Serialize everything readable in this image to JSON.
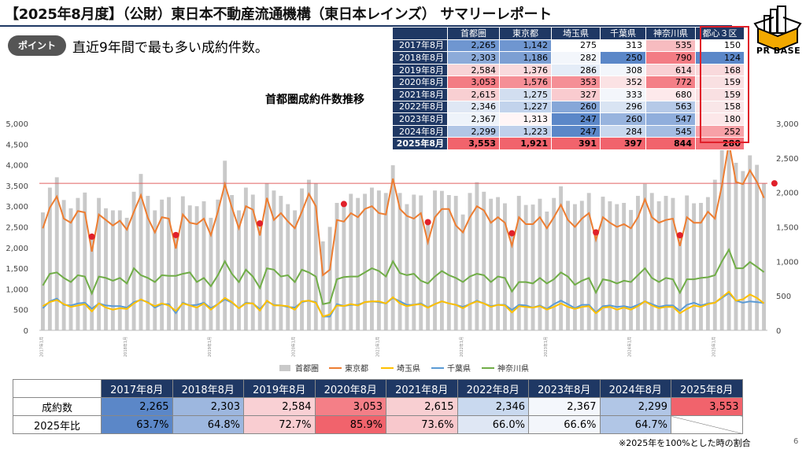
{
  "header": {
    "title": "【2025年8月度】（公財）東日本不動産流通機構（東日本レインズ） サマリーレポート",
    "logo_text": "PR BASE"
  },
  "point": {
    "badge": "ポイント",
    "text": "直近9年間で最も多い成約件数。"
  },
  "summary_table": {
    "columns": [
      "首都圏",
      "東京都",
      "埼玉県",
      "千葉県",
      "神奈川県",
      "都心３区"
    ],
    "rows": [
      {
        "label": "2017年8月",
        "values": [
          "2,265",
          "1,142",
          "275",
          "313",
          "535",
          "150"
        ]
      },
      {
        "label": "2018年8月",
        "values": [
          "2,303",
          "1,186",
          "282",
          "250",
          "790",
          "124"
        ]
      },
      {
        "label": "2019年8月",
        "values": [
          "2,584",
          "1,376",
          "286",
          "308",
          "614",
          "168"
        ]
      },
      {
        "label": "2020年8月",
        "values": [
          "3,053",
          "1,576",
          "353",
          "352",
          "772",
          "159"
        ]
      },
      {
        "label": "2021年8月",
        "values": [
          "2,615",
          "1,275",
          "327",
          "333",
          "680",
          "159"
        ]
      },
      {
        "label": "2022年8月",
        "values": [
          "2,346",
          "1,227",
          "260",
          "296",
          "563",
          "158"
        ]
      },
      {
        "label": "2023年8月",
        "values": [
          "2,367",
          "1,313",
          "247",
          "260",
          "547",
          "180"
        ]
      },
      {
        "label": "2024年8月",
        "values": [
          "2,299",
          "1,223",
          "247",
          "284",
          "545",
          "252"
        ]
      },
      {
        "label": "2025年8月",
        "values": [
          "3,553",
          "1,921",
          "391",
          "397",
          "844",
          "280"
        ]
      }
    ],
    "cell_colors": [
      [
        "#6f96d0",
        "#6f96d0",
        "#ffffff",
        "#ffffff",
        "#f7bcc0",
        "#ffffff"
      ],
      [
        "#8cabd9",
        "#7c9fd3",
        "#f3f6fb",
        "#5b87c8",
        "#f37c84",
        "#5b87c8"
      ],
      [
        "#f8d3d6",
        "#f9dadd",
        "#e4ecf7",
        "#f3f6fb",
        "#f9d0d4",
        "#f9d9dc"
      ],
      [
        "#f37c84",
        "#f58f96",
        "#f58f96",
        "#fbe2e4",
        "#f47f87",
        "#f9e0e2"
      ],
      [
        "#f8cfd2",
        "#d2def0",
        "#f9cbcf",
        "#f3f6fb",
        "#fde9eb",
        "#f9e0e2"
      ],
      [
        "#dfe7f4",
        "#c2d3ec",
        "#86a7d8",
        "#d9e4f3",
        "#b5c9e7",
        "#f9e6e8"
      ],
      [
        "#eef3fa",
        "#fff5f6",
        "#5b87c8",
        "#98b4de",
        "#90aedc",
        "#fce7e9"
      ],
      [
        "#b1c6e6",
        "#bfd0eb",
        "#5b87c8",
        "#c8d8ee",
        "#a4bde2",
        "#f7a1a7"
      ],
      [
        "#f1636c",
        "#f1636c",
        "#f1636c",
        "#f1636c",
        "#f1636c",
        "#f4727a"
      ]
    ]
  },
  "chart_data": {
    "type": "bar+line",
    "title": "首都圏成約件数推移",
    "y_left": {
      "min": 0,
      "max": 5000,
      "ticks": [
        "0",
        "500",
        "1,000",
        "1,500",
        "2,000",
        "2,500",
        "3,000",
        "3,500",
        "4,000",
        "4,500",
        "5,000"
      ]
    },
    "y_right": {
      "min": 0,
      "max": 3000,
      "ticks": [
        "0",
        "500",
        "1,000",
        "1,500",
        "2,000",
        "2,500",
        "3,000"
      ]
    },
    "reference_line_value": 3553,
    "legend": [
      "首都圏",
      "東京都",
      "埼玉県",
      "千葉県",
      "神奈川県"
    ],
    "x_start": "2017年1月",
    "months_count": 104,
    "year_markers": [
      "2017年1月",
      "2018年1月",
      "2019年1月",
      "2020年1月",
      "2021年1月",
      "2022年1月",
      "2023年1月",
      "2024年1月",
      "2025年1月"
    ],
    "august_index": [
      7,
      19,
      31,
      43,
      55,
      67,
      79,
      91,
      103
    ],
    "shutoken": [
      2850,
      3450,
      3700,
      3150,
      2950,
      3200,
      3330,
      2265,
      3200,
      2950,
      2900,
      2900,
      2720,
      3350,
      3780,
      3250,
      2900,
      3160,
      3220,
      2303,
      3240,
      3020,
      3000,
      3120,
      2720,
      3160,
      4100,
      3270,
      2900,
      3450,
      3280,
      2584,
      3550,
      3380,
      3250,
      3050,
      2900,
      3430,
      3640,
      3550,
      2150,
      2500,
      3080,
      3053,
      3300,
      3200,
      3300,
      3450,
      3380,
      3320,
      3990,
      3320,
      3050,
      3280,
      3260,
      2615,
      3380,
      3370,
      3270,
      3250,
      2800,
      3320,
      3580,
      3350,
      3180,
      3220,
      3070,
      2346,
      3250,
      3030,
      3040,
      3180,
      2870,
      3200,
      3480,
      3130,
      3050,
      3130,
      3320,
      2367,
      3230,
      3120,
      3050,
      3080,
      2910,
      3250,
      3540,
      3320,
      3120,
      3250,
      3200,
      2299,
      3260,
      3070,
      3080,
      3220,
      3640,
      4480,
      4850,
      4050,
      3850,
      4230,
      4000,
      3553
    ],
    "tokyo": [
      1480,
      1780,
      1940,
      1620,
      1560,
      1730,
      1710,
      1142,
      1680,
      1600,
      1520,
      1590,
      1460,
      1720,
      1960,
      1630,
      1420,
      1640,
      1620,
      1186,
      1680,
      1560,
      1540,
      1620,
      1380,
      1720,
      2120,
      1780,
      1480,
      1800,
      1750,
      1376,
      1920,
      1600,
      1700,
      1580,
      1480,
      1720,
      1980,
      1800,
      800,
      880,
      1600,
      1576,
      1700,
      1640,
      1760,
      1800,
      1700,
      1680,
      2200,
      1760,
      1660,
      1620,
      1700,
      1275,
      1640,
      1760,
      1760,
      1520,
      1420,
      1640,
      1800,
      1740,
      1560,
      1640,
      1560,
      1227,
      1640,
      1540,
      1540,
      1640,
      1480,
      1640,
      1820,
      1600,
      1500,
      1620,
      1700,
      1313,
      1640,
      1560,
      1500,
      1540,
      1480,
      1640,
      1900,
      1640,
      1560,
      1600,
      1620,
      1223,
      1640,
      1560,
      1560,
      1720,
      1620,
      2100,
      2720,
      2150,
      2120,
      2320,
      2150,
      1921
    ],
    "saitama": [
      350,
      410,
      440,
      380,
      340,
      360,
      380,
      275,
      390,
      330,
      300,
      320,
      310,
      390,
      450,
      400,
      350,
      390,
      360,
      282,
      390,
      360,
      330,
      390,
      300,
      380,
      470,
      410,
      320,
      390,
      390,
      286,
      430,
      360,
      360,
      350,
      300,
      420,
      430,
      400,
      200,
      230,
      360,
      353,
      380,
      360,
      410,
      420,
      420,
      390,
      480,
      390,
      350,
      370,
      380,
      327,
      380,
      420,
      390,
      370,
      320,
      380,
      420,
      390,
      340,
      370,
      360,
      260,
      350,
      340,
      330,
      350,
      300,
      340,
      390,
      340,
      310,
      340,
      350,
      247,
      330,
      340,
      300,
      330,
      300,
      350,
      420,
      360,
      320,
      340,
      340,
      247,
      310,
      360,
      340,
      380,
      400,
      480,
      560,
      430,
      450,
      520,
      470,
      391
    ],
    "chiba": [
      320,
      420,
      460,
      370,
      360,
      390,
      400,
      313,
      390,
      360,
      350,
      350,
      330,
      410,
      440,
      410,
      330,
      380,
      380,
      250,
      400,
      360,
      370,
      400,
      320,
      380,
      450,
      400,
      320,
      400,
      390,
      308,
      420,
      370,
      360,
      340,
      330,
      410,
      430,
      410,
      200,
      200,
      380,
      352,
      370,
      370,
      410,
      420,
      410,
      390,
      470,
      420,
      370,
      370,
      390,
      333,
      380,
      420,
      390,
      370,
      340,
      380,
      430,
      390,
      350,
      370,
      370,
      296,
      370,
      360,
      330,
      360,
      310,
      380,
      430,
      380,
      320,
      370,
      370,
      260,
      350,
      360,
      340,
      350,
      330,
      370,
      420,
      380,
      340,
      360,
      360,
      284,
      370,
      400,
      360,
      390,
      400,
      470,
      540,
      430,
      400,
      420,
      410,
      397
    ],
    "kanagawa": [
      650,
      820,
      840,
      760,
      700,
      800,
      780,
      535,
      780,
      760,
      720,
      760,
      680,
      900,
      800,
      760,
      700,
      800,
      790,
      790,
      820,
      840,
      700,
      760,
      640,
      800,
      1000,
      820,
      700,
      880,
      780,
      614,
      900,
      880,
      780,
      800,
      700,
      880,
      840,
      780,
      380,
      400,
      740,
      772,
      780,
      780,
      840,
      900,
      860,
      780,
      1000,
      830,
      800,
      820,
      720,
      680,
      780,
      860,
      800,
      760,
      700,
      780,
      820,
      800,
      700,
      780,
      760,
      563,
      700,
      700,
      680,
      760,
      680,
      740,
      840,
      780,
      660,
      720,
      760,
      547,
      740,
      720,
      680,
      720,
      700,
      800,
      900,
      760,
      700,
      760,
      740,
      545,
      740,
      740,
      760,
      770,
      800,
      1000,
      1170,
      900,
      900,
      990,
      920,
      844
    ],
    "red_dots": [
      7,
      19,
      31,
      43,
      55,
      67,
      79,
      91,
      103
    ]
  },
  "bottom_table": {
    "header": [
      "2017年8月",
      "2018年8月",
      "2019年8月",
      "2020年8月",
      "2021年8月",
      "2022年8月",
      "2023年8月",
      "2024年8月",
      "2025年8月"
    ],
    "rows": [
      {
        "label": "成約数",
        "values": [
          "2,265",
          "2,303",
          "2,584",
          "3,053",
          "2,615",
          "2,346",
          "2,367",
          "2,299",
          "3,553"
        ]
      },
      {
        "label": "2025年比",
        "values": [
          "63.7%",
          "64.8%",
          "72.7%",
          "85.9%",
          "73.6%",
          "66.0%",
          "66.6%",
          "64.7%",
          ""
        ]
      }
    ],
    "cell_colors": [
      [
        "#5b87c8",
        "#9db7df",
        "#f9d0d4",
        "#f47f87",
        "#f8cfd2",
        "#c9d9ef",
        "#f4f7fc",
        "#b1c6e6",
        "#f1636c"
      ],
      [
        "#5b87c8",
        "#9db7df",
        "#f9cdd1",
        "#f1636c",
        "#f8c8cc",
        "#dfe7f4",
        "#f3f6fb",
        "#b1c6e6",
        "#ffffff"
      ]
    ]
  },
  "footnote": "※2025年を100%とした時の割合",
  "page_number": "6",
  "colors": {
    "navy": "#1f3864",
    "bar": "#c9c9c9",
    "tokyo": "#ed7d31",
    "saitama": "#ffc000",
    "chiba": "#5b9bd5",
    "kanagawa": "#70ad47",
    "accent_red": "#e0202a"
  }
}
